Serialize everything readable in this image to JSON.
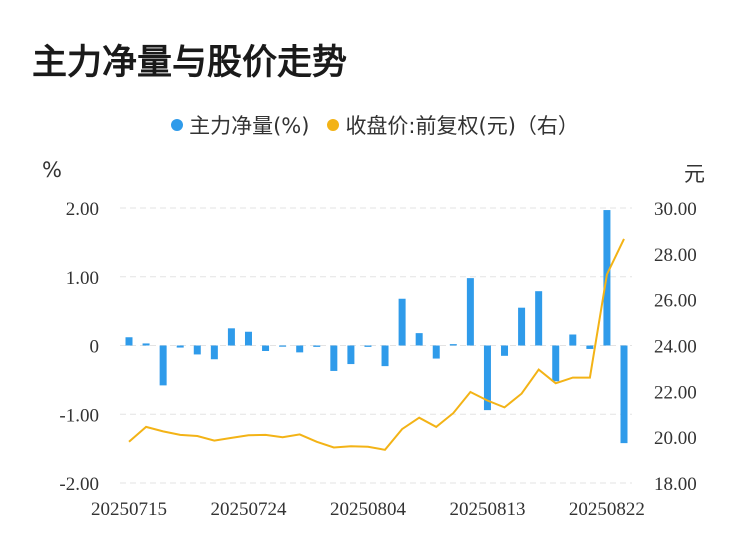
{
  "title": "主力净量与股价走势",
  "legend": {
    "bar_label": "主力净量(%)",
    "line_label": "收盘价:前复权(元)（右）"
  },
  "units": {
    "left": "%",
    "right": "元"
  },
  "colors": {
    "bar": "#2f9bea",
    "line": "#f3b316",
    "grid": "#e3e3e3"
  },
  "chart_data": {
    "type": "bar+line",
    "x_tick_labels": [
      "20250715",
      "20250724",
      "20250804",
      "20250813",
      "20250822"
    ],
    "x_tick_index": [
      0,
      7,
      14,
      21,
      28
    ],
    "left_axis": {
      "ylim": [
        -2,
        2
      ],
      "ticks": [
        "2.00",
        "1.00",
        "0",
        "-1.00",
        "-2.00"
      ],
      "tick_values": [
        2,
        1,
        0,
        -1,
        -2
      ]
    },
    "right_axis": {
      "ylim": [
        18,
        30
      ],
      "ticks": [
        "30.00",
        "28.00",
        "26.00",
        "24.00",
        "22.00",
        "20.00",
        "18.00"
      ],
      "tick_values": [
        30,
        28,
        26,
        24,
        22,
        20,
        18
      ]
    },
    "series": [
      {
        "name": "主力净量(%)",
        "kind": "bar",
        "values": [
          0.12,
          0.03,
          -0.58,
          -0.03,
          -0.13,
          -0.2,
          0.25,
          0.2,
          -0.08,
          0.0,
          -0.1,
          -0.02,
          -0.37,
          -0.27,
          -0.02,
          -0.3,
          0.68,
          0.18,
          -0.19,
          0.02,
          0.98,
          -0.94,
          -0.15,
          0.55,
          0.79,
          -0.52,
          0.16,
          -0.05,
          1.97,
          -1.42
        ]
      },
      {
        "name": "收盘价:前复权(元)（右）",
        "kind": "line",
        "axis": "right",
        "values": [
          19.8,
          20.45,
          20.25,
          20.1,
          20.05,
          19.85,
          19.97,
          20.08,
          20.1,
          20.0,
          20.12,
          19.8,
          19.55,
          19.6,
          19.58,
          19.45,
          20.35,
          20.85,
          20.45,
          21.05,
          21.97,
          21.6,
          21.3,
          21.9,
          22.95,
          22.35,
          22.6,
          22.6,
          27.1,
          28.65
        ]
      }
    ]
  }
}
